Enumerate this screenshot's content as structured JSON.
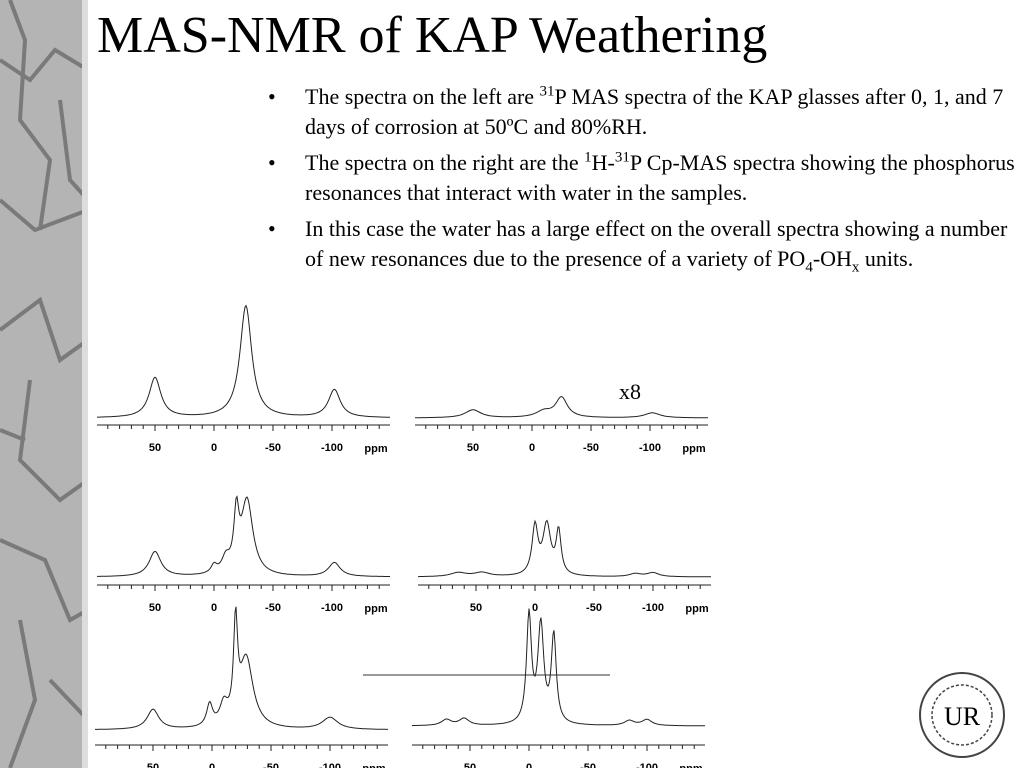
{
  "title": "MAS-NMR of KAP Weathering",
  "bullets": [
    [
      {
        "text": "The spectra on the left are "
      },
      {
        "sup": "31"
      },
      {
        "text": "P MAS spectra of the KAP glasses after 0, 1, and 7 days of corrosion at 50ºC and 80%RH."
      }
    ],
    [
      {
        "text": "The spectra on the right are the "
      },
      {
        "sup": "1"
      },
      {
        "text": "H-"
      },
      {
        "sup": "31"
      },
      {
        "text": "P Cp-MAS spectra showing the phosphorus resonances that interact with water in the samples."
      }
    ],
    [
      {
        "text": "In this case the water has a large effect on the overall spectra showing a number of new resonances due to the presence of a variety of PO"
      },
      {
        "sub": "4"
      },
      {
        "text": "-OH"
      },
      {
        "sub": "x"
      },
      {
        "text": " units."
      }
    ]
  ],
  "scale_note": "x8",
  "axis": {
    "ticks": [
      "50",
      "0",
      "-50",
      "-100"
    ],
    "unit": "ppm"
  },
  "logo": "UR"
}
